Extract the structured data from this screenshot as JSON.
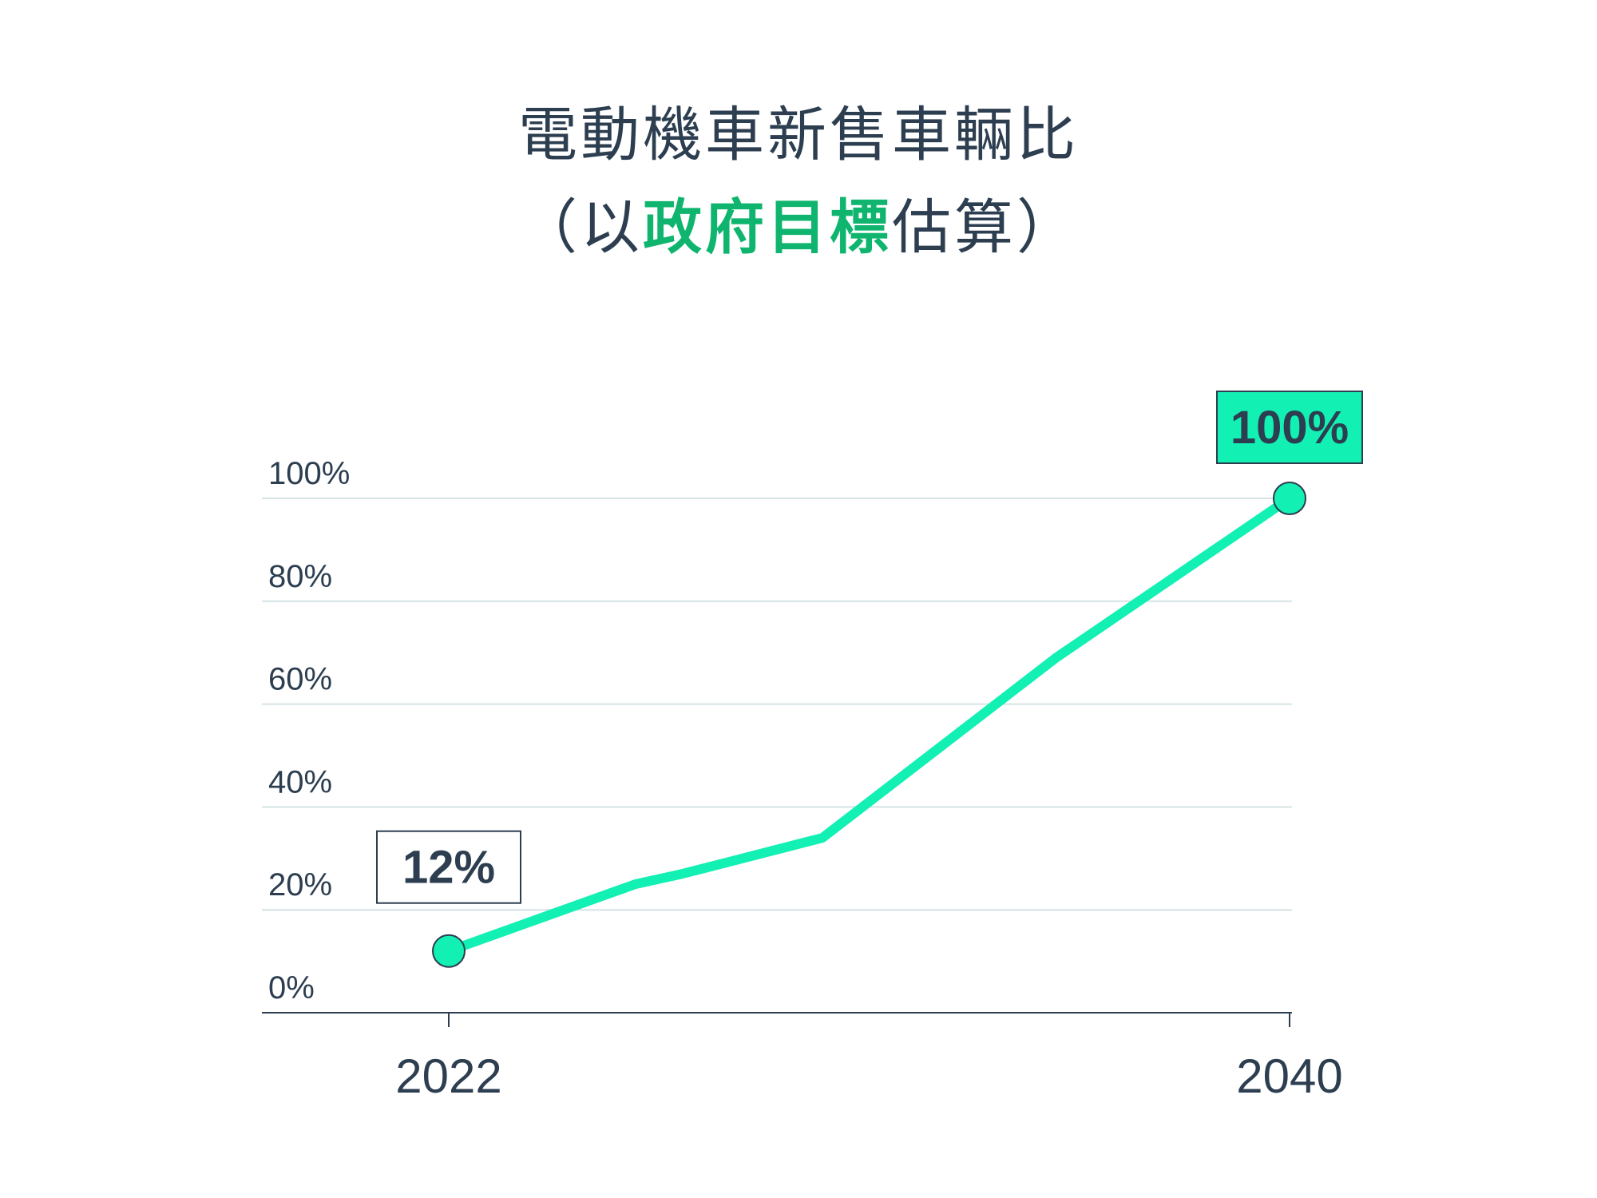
{
  "title": {
    "line1": "電動機車新售車輛比",
    "line2_prefix": "（以",
    "line2_highlight": "政府目標",
    "line2_suffix": "估算）"
  },
  "colors": {
    "line": "#12f0b4",
    "highlight_text": "#0fb56e",
    "text": "#2c3e50",
    "grid": "#d5e3e5"
  },
  "chart_data": {
    "type": "line",
    "x": [
      2022,
      2026,
      2027,
      2030,
      2035,
      2040
    ],
    "values": [
      12,
      25,
      27,
      34,
      69,
      100
    ],
    "xticks": [
      "2022",
      "2040"
    ],
    "yticks": [
      "0%",
      "20%",
      "40%",
      "60%",
      "80%",
      "100%"
    ],
    "ylim": [
      0,
      100
    ],
    "xlim": [
      2022,
      2040
    ],
    "grid": true,
    "annotations": [
      {
        "x": 2022,
        "y": 12,
        "label": "12%",
        "style": "outline"
      },
      {
        "x": 2040,
        "y": 100,
        "label": "100%",
        "style": "filled"
      }
    ]
  }
}
